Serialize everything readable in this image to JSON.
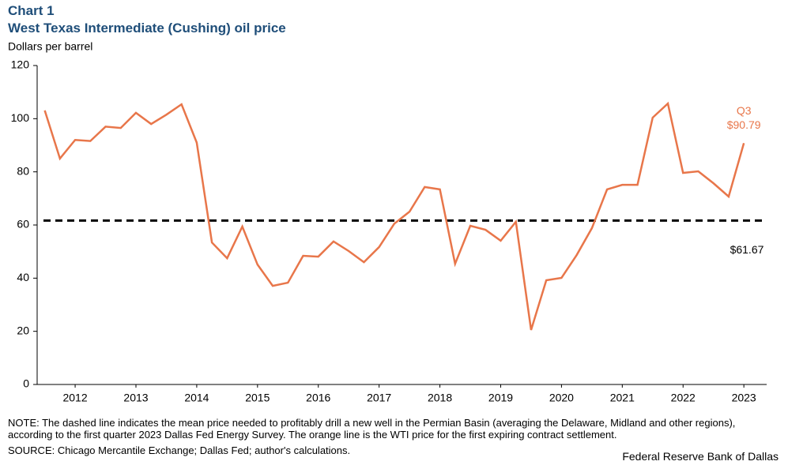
{
  "chart_data": {
    "type": "line",
    "label": "Chart 1",
    "title": "West Texas Intermediate (Cushing) oil price",
    "y_label": "Dollars per barrel",
    "x": [
      2012,
      2012.25,
      2012.5,
      2012.75,
      2013,
      2013.25,
      2013.5,
      2013.75,
      2014,
      2014.25,
      2014.5,
      2014.75,
      2015,
      2015.25,
      2015.5,
      2015.75,
      2016,
      2016.25,
      2016.5,
      2016.75,
      2017,
      2017.25,
      2017.5,
      2017.75,
      2018,
      2018.25,
      2018.5,
      2018.75,
      2019,
      2019.25,
      2019.5,
      2019.75,
      2020,
      2020.25,
      2020.5,
      2020.75,
      2021,
      2021.25,
      2021.5,
      2021.75,
      2022,
      2022.25,
      2022.5,
      2022.75,
      2023,
      2023.25,
      2023.5
    ],
    "series": [
      {
        "name": "WTI",
        "color": "#e8764a",
        "values": [
          103.1,
          85,
          92,
          91.6,
          97,
          96.5,
          102.2,
          98,
          101.5,
          105.4,
          91,
          53.4,
          47.5,
          59.4,
          45.1,
          37.1,
          38.3,
          48.4,
          48.1,
          53.8,
          50.2,
          46,
          51.7,
          60.5,
          65,
          74.3,
          73.4,
          45.4,
          59.7,
          58.2,
          54.1,
          61.2,
          20.5,
          39.2,
          40.1,
          48.7,
          58.8,
          73.4,
          75.1,
          75.1,
          100.4,
          105.7,
          79.6,
          80.2,
          75.7,
          70.7,
          90.79
        ]
      }
    ],
    "last_point_labels": [
      "Q3",
      "$90.79"
    ],
    "reference_line": {
      "value": 61.67,
      "label": "$61.67",
      "color": "#000000"
    },
    "xlim": [
      2011.875,
      2023.875
    ],
    "xticks": [
      {
        "value": 2012.5,
        "label": "2012"
      },
      {
        "value": 2013.5,
        "label": "2013"
      },
      {
        "value": 2014.5,
        "label": "2014"
      },
      {
        "value": 2015.5,
        "label": "2015"
      },
      {
        "value": 2016.5,
        "label": "2016"
      },
      {
        "value": 2017.5,
        "label": "2017"
      },
      {
        "value": 2018.5,
        "label": "2018"
      },
      {
        "value": 2019.5,
        "label": "2019"
      },
      {
        "value": 2020.5,
        "label": "2020"
      },
      {
        "value": 2021.5,
        "label": "2021"
      },
      {
        "value": 2022.5,
        "label": "2022"
      },
      {
        "value": 2023.5,
        "label": "2023"
      }
    ],
    "ylim": [
      0,
      120
    ],
    "yticks": [
      0,
      20,
      40,
      60,
      80,
      100,
      120
    ],
    "note": "NOTE: The dashed line indicates the mean price needed to profitably drill a new well in the Permian Basin (averaging the Delaware, Midland and other regions), according to the first quarter 2023 Dallas Fed Energy Survey. The orange line is the WTI price for the first expiring contract settlement.",
    "source": "SOURCE: Chicago Mercantile Exchange; Dallas Fed; author's calculations.",
    "credit": "Federal Reserve Bank of Dallas"
  }
}
